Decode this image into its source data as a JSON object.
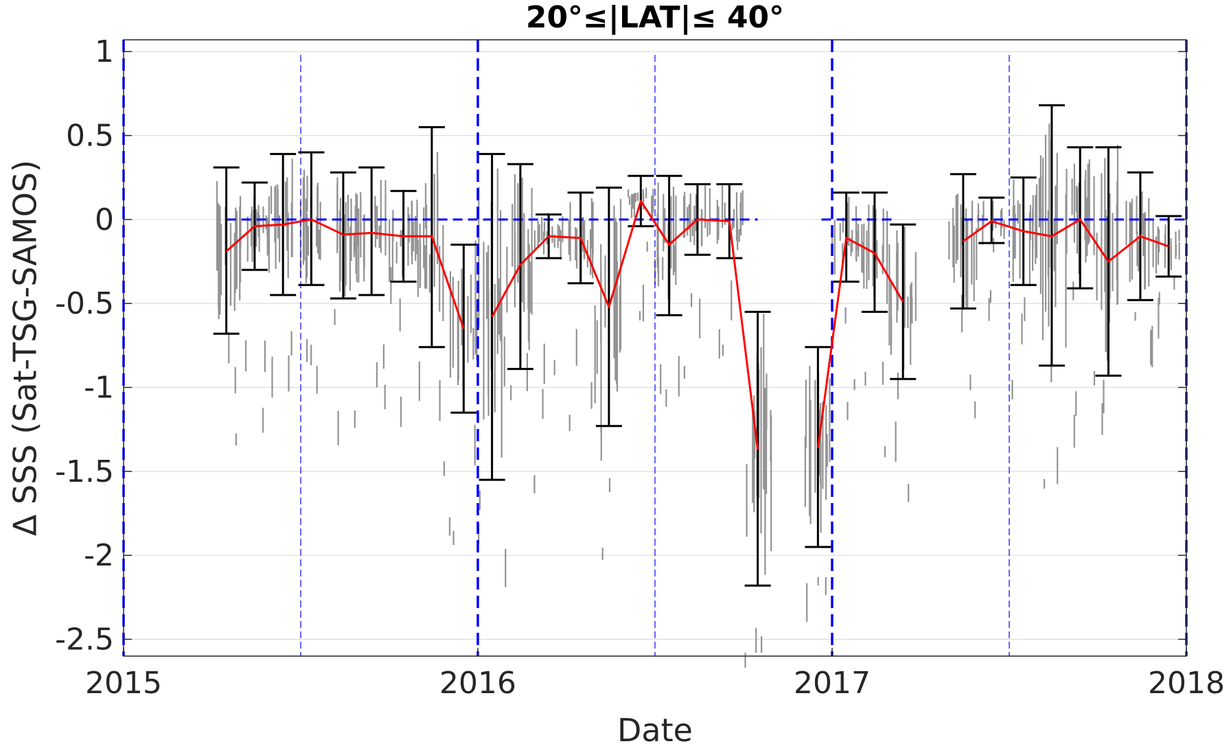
{
  "chart_data": {
    "type": "line",
    "title": "20°≤|LAT|≤ 40°",
    "xlabel": "Date",
    "ylabel": "Δ SSS (Sat-TSG-SAMOS)",
    "xlim": [
      2015.0,
      2018.0
    ],
    "ylim": [
      -2.6,
      1.07
    ],
    "x_ticks": [
      2015,
      2016,
      2017,
      2018
    ],
    "x_tick_labels": [
      "2015",
      "2016",
      "2017",
      "2018"
    ],
    "y_ticks": [
      1,
      0.5,
      0,
      -0.5,
      -1,
      -1.5,
      -2,
      -2.5
    ],
    "y_tick_labels": [
      "1",
      "0.5",
      "0",
      "-0.5",
      "-1",
      "-1.5",
      "-2",
      "-2.5"
    ],
    "grid": true,
    "colors": {
      "mean_line": "#ff0000",
      "error_bars": "#000000",
      "scatter": "#808080",
      "reference_lines": "#0000ff"
    },
    "year_boundaries": [
      2015.0,
      2016.0,
      2017.0,
      2018.0
    ],
    "mid_year_lines": [
      2015.5,
      2016.5,
      2017.5
    ],
    "zero_reference_segments": [
      [
        2015.29,
        2016.79
      ],
      [
        2016.97,
        2017.17
      ],
      [
        2017.37,
        2018.0
      ]
    ],
    "series": [
      {
        "x": [
          2015.29,
          2015.37,
          2015.45,
          2015.53,
          2015.62,
          2015.7,
          2015.79,
          2015.87,
          2015.96
        ],
        "y": [
          -0.19,
          -0.04,
          -0.03,
          0.0,
          -0.09,
          -0.08,
          -0.1,
          -0.1,
          -0.65
        ],
        "upper": [
          0.31,
          0.22,
          0.39,
          0.4,
          0.28,
          0.31,
          0.17,
          0.55,
          -0.15
        ],
        "lower": [
          -0.68,
          -0.3,
          -0.45,
          -0.39,
          -0.47,
          -0.45,
          -0.37,
          -0.76,
          -1.15
        ]
      },
      {
        "x": [
          2016.04,
          2016.12,
          2016.2,
          2016.29,
          2016.37,
          2016.46,
          2016.54,
          2016.62,
          2016.71,
          2016.79
        ],
        "y": [
          -0.58,
          -0.27,
          -0.1,
          -0.11,
          -0.52,
          0.11,
          -0.15,
          0.0,
          -0.01,
          -1.37
        ],
        "upper": [
          0.39,
          0.33,
          0.03,
          0.16,
          0.19,
          0.26,
          0.26,
          0.21,
          0.21,
          -0.55
        ],
        "lower": [
          -1.55,
          -0.89,
          -0.23,
          -0.38,
          -1.23,
          -0.04,
          -0.57,
          -0.21,
          -0.23,
          -2.18
        ]
      },
      {
        "x": [
          2016.96,
          2017.04,
          2017.12,
          2017.2
        ],
        "y": [
          -1.36,
          -0.11,
          -0.2,
          -0.49
        ],
        "upper": [
          -0.76,
          0.16,
          0.16,
          -0.03
        ],
        "lower": [
          -1.95,
          -0.37,
          -0.55,
          -0.95
        ]
      },
      {
        "x": [
          2017.37,
          2017.45,
          2017.54,
          2017.62,
          2017.7,
          2017.78,
          2017.87,
          2017.95
        ],
        "y": [
          -0.13,
          -0.01,
          -0.07,
          -0.1,
          0.0,
          -0.25,
          -0.1,
          -0.16
        ],
        "upper": [
          0.27,
          0.13,
          0.25,
          0.68,
          0.43,
          0.43,
          0.28,
          0.02
        ],
        "lower": [
          -0.53,
          -0.14,
          -0.39,
          -0.87,
          -0.41,
          -0.93,
          -0.48,
          -0.34
        ]
      }
    ]
  }
}
